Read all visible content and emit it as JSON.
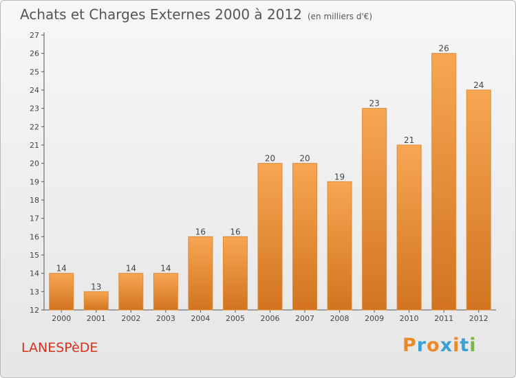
{
  "header": {
    "title": "Achats et Charges Externes 2000 à 2012",
    "subtitle": "(en milliers d'€)"
  },
  "footer": {
    "city": "LANESPèDE",
    "logo_text": "Proxiti"
  },
  "colors": {
    "bar_top": "#f7a653",
    "bar_bottom": "#d2741f",
    "city": "#d9301c"
  },
  "chart_data": {
    "type": "bar",
    "title": "Achats et Charges Externes 2000 à 2012",
    "subtitle": "(en milliers d'€)",
    "categories": [
      "2000",
      "2001",
      "2002",
      "2003",
      "2004",
      "2005",
      "2006",
      "2007",
      "2008",
      "2009",
      "2010",
      "2011",
      "2012"
    ],
    "values": [
      14,
      13,
      14,
      14,
      16,
      16,
      20,
      20,
      19,
      23,
      21,
      26,
      24
    ],
    "data_labels": [
      "14",
      "13",
      "14",
      "14",
      "16",
      "16",
      "20",
      "20",
      "19",
      "23",
      "21",
      "26",
      "24"
    ],
    "ylim": [
      12,
      27
    ],
    "yticks": [
      "12",
      "13",
      "14",
      "15",
      "16",
      "17",
      "18",
      "19",
      "20",
      "21",
      "22",
      "23",
      "24",
      "25",
      "26",
      "27"
    ],
    "grid": false,
    "legend": "none"
  }
}
